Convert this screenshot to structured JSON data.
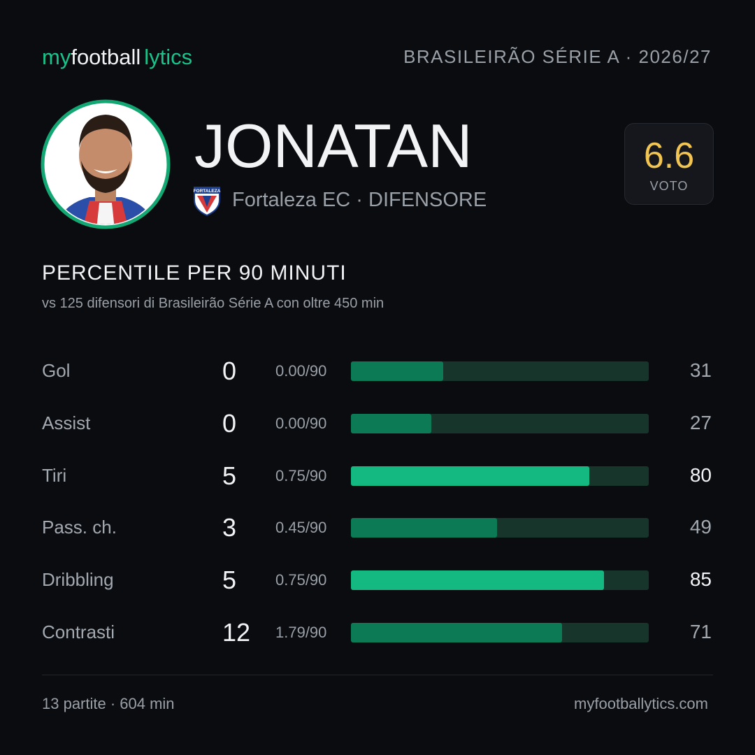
{
  "header": {
    "brand_my": "my",
    "brand_football": "football",
    "brand_lytics": "lytics",
    "competition": "BRASILEIRÃO SÉRIE A · 2026/27"
  },
  "player": {
    "name": "JONATAN",
    "crest_text": "FORTALEZA",
    "club": "Fortaleza EC · DIFENSORE",
    "rating": 6.6,
    "rating_label": "VOTO"
  },
  "section": {
    "title": "PERCENTILE PER 90 MINUTI",
    "subtitle": "vs 125 difensori di Brasileirão Série A con oltre 450 min"
  },
  "percentile_range": [
    0,
    100
  ],
  "stats": [
    {
      "label": "Gol",
      "total": 0,
      "per90": "0.00/90",
      "percentile": 31,
      "highlight": false,
      "color": "#0b7a55"
    },
    {
      "label": "Assist",
      "total": 0,
      "per90": "0.00/90",
      "percentile": 27,
      "highlight": false,
      "color": "#0b7a55"
    },
    {
      "label": "Tiri",
      "total": 5,
      "per90": "0.75/90",
      "percentile": 80,
      "highlight": true,
      "color": "#13b981"
    },
    {
      "label": "Pass. ch.",
      "total": 3,
      "per90": "0.45/90",
      "percentile": 49,
      "highlight": false,
      "color": "#0b7a55"
    },
    {
      "label": "Dribbling",
      "total": 5,
      "per90": "0.75/90",
      "percentile": 85,
      "highlight": true,
      "color": "#13b981"
    },
    {
      "label": "Contrasti",
      "total": 12,
      "per90": "1.79/90",
      "percentile": 71,
      "highlight": false,
      "color": "#0b7a55"
    }
  ],
  "footer": {
    "summary": "13 partite · 604 min",
    "site": "myfootballytics.com"
  }
}
